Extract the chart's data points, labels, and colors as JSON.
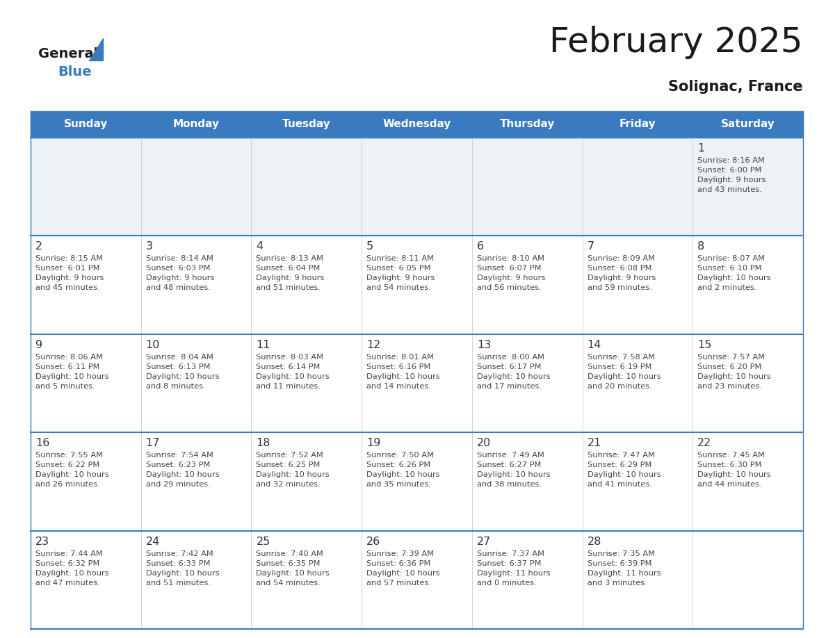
{
  "title": "February 2025",
  "subtitle": "Solignac, France",
  "header_color": "#3a7abf",
  "header_text_color": "#ffffff",
  "bg_color": "#ffffff",
  "cell_bg_row1": "#eef2f7",
  "cell_bg_white": "#ffffff",
  "separator_color": "#3a7abf",
  "text_color": "#333333",
  "day_headers": [
    "Sunday",
    "Monday",
    "Tuesday",
    "Wednesday",
    "Thursday",
    "Friday",
    "Saturday"
  ],
  "weeks": [
    [
      {
        "day": null,
        "info": null
      },
      {
        "day": null,
        "info": null
      },
      {
        "day": null,
        "info": null
      },
      {
        "day": null,
        "info": null
      },
      {
        "day": null,
        "info": null
      },
      {
        "day": null,
        "info": null
      },
      {
        "day": 1,
        "info": "Sunrise: 8:16 AM\nSunset: 6:00 PM\nDaylight: 9 hours\nand 43 minutes."
      }
    ],
    [
      {
        "day": 2,
        "info": "Sunrise: 8:15 AM\nSunset: 6:01 PM\nDaylight: 9 hours\nand 45 minutes."
      },
      {
        "day": 3,
        "info": "Sunrise: 8:14 AM\nSunset: 6:03 PM\nDaylight: 9 hours\nand 48 minutes."
      },
      {
        "day": 4,
        "info": "Sunrise: 8:13 AM\nSunset: 6:04 PM\nDaylight: 9 hours\nand 51 minutes."
      },
      {
        "day": 5,
        "info": "Sunrise: 8:11 AM\nSunset: 6:05 PM\nDaylight: 9 hours\nand 54 minutes."
      },
      {
        "day": 6,
        "info": "Sunrise: 8:10 AM\nSunset: 6:07 PM\nDaylight: 9 hours\nand 56 minutes."
      },
      {
        "day": 7,
        "info": "Sunrise: 8:09 AM\nSunset: 6:08 PM\nDaylight: 9 hours\nand 59 minutes."
      },
      {
        "day": 8,
        "info": "Sunrise: 8:07 AM\nSunset: 6:10 PM\nDaylight: 10 hours\nand 2 minutes."
      }
    ],
    [
      {
        "day": 9,
        "info": "Sunrise: 8:06 AM\nSunset: 6:11 PM\nDaylight: 10 hours\nand 5 minutes."
      },
      {
        "day": 10,
        "info": "Sunrise: 8:04 AM\nSunset: 6:13 PM\nDaylight: 10 hours\nand 8 minutes."
      },
      {
        "day": 11,
        "info": "Sunrise: 8:03 AM\nSunset: 6:14 PM\nDaylight: 10 hours\nand 11 minutes."
      },
      {
        "day": 12,
        "info": "Sunrise: 8:01 AM\nSunset: 6:16 PM\nDaylight: 10 hours\nand 14 minutes."
      },
      {
        "day": 13,
        "info": "Sunrise: 8:00 AM\nSunset: 6:17 PM\nDaylight: 10 hours\nand 17 minutes."
      },
      {
        "day": 14,
        "info": "Sunrise: 7:58 AM\nSunset: 6:19 PM\nDaylight: 10 hours\nand 20 minutes."
      },
      {
        "day": 15,
        "info": "Sunrise: 7:57 AM\nSunset: 6:20 PM\nDaylight: 10 hours\nand 23 minutes."
      }
    ],
    [
      {
        "day": 16,
        "info": "Sunrise: 7:55 AM\nSunset: 6:22 PM\nDaylight: 10 hours\nand 26 minutes."
      },
      {
        "day": 17,
        "info": "Sunrise: 7:54 AM\nSunset: 6:23 PM\nDaylight: 10 hours\nand 29 minutes."
      },
      {
        "day": 18,
        "info": "Sunrise: 7:52 AM\nSunset: 6:25 PM\nDaylight: 10 hours\nand 32 minutes."
      },
      {
        "day": 19,
        "info": "Sunrise: 7:50 AM\nSunset: 6:26 PM\nDaylight: 10 hours\nand 35 minutes."
      },
      {
        "day": 20,
        "info": "Sunrise: 7:49 AM\nSunset: 6:27 PM\nDaylight: 10 hours\nand 38 minutes."
      },
      {
        "day": 21,
        "info": "Sunrise: 7:47 AM\nSunset: 6:29 PM\nDaylight: 10 hours\nand 41 minutes."
      },
      {
        "day": 22,
        "info": "Sunrise: 7:45 AM\nSunset: 6:30 PM\nDaylight: 10 hours\nand 44 minutes."
      }
    ],
    [
      {
        "day": 23,
        "info": "Sunrise: 7:44 AM\nSunset: 6:32 PM\nDaylight: 10 hours\nand 47 minutes."
      },
      {
        "day": 24,
        "info": "Sunrise: 7:42 AM\nSunset: 6:33 PM\nDaylight: 10 hours\nand 51 minutes."
      },
      {
        "day": 25,
        "info": "Sunrise: 7:40 AM\nSunset: 6:35 PM\nDaylight: 10 hours\nand 54 minutes."
      },
      {
        "day": 26,
        "info": "Sunrise: 7:39 AM\nSunset: 6:36 PM\nDaylight: 10 hours\nand 57 minutes."
      },
      {
        "day": 27,
        "info": "Sunrise: 7:37 AM\nSunset: 6:37 PM\nDaylight: 11 hours\nand 0 minutes."
      },
      {
        "day": 28,
        "info": "Sunrise: 7:35 AM\nSunset: 6:39 PM\nDaylight: 11 hours\nand 3 minutes."
      },
      {
        "day": null,
        "info": null
      }
    ]
  ],
  "logo_general_color": "#1a1a1a",
  "logo_blue_color": "#3a7abf",
  "logo_triangle_color": "#3a7abf"
}
